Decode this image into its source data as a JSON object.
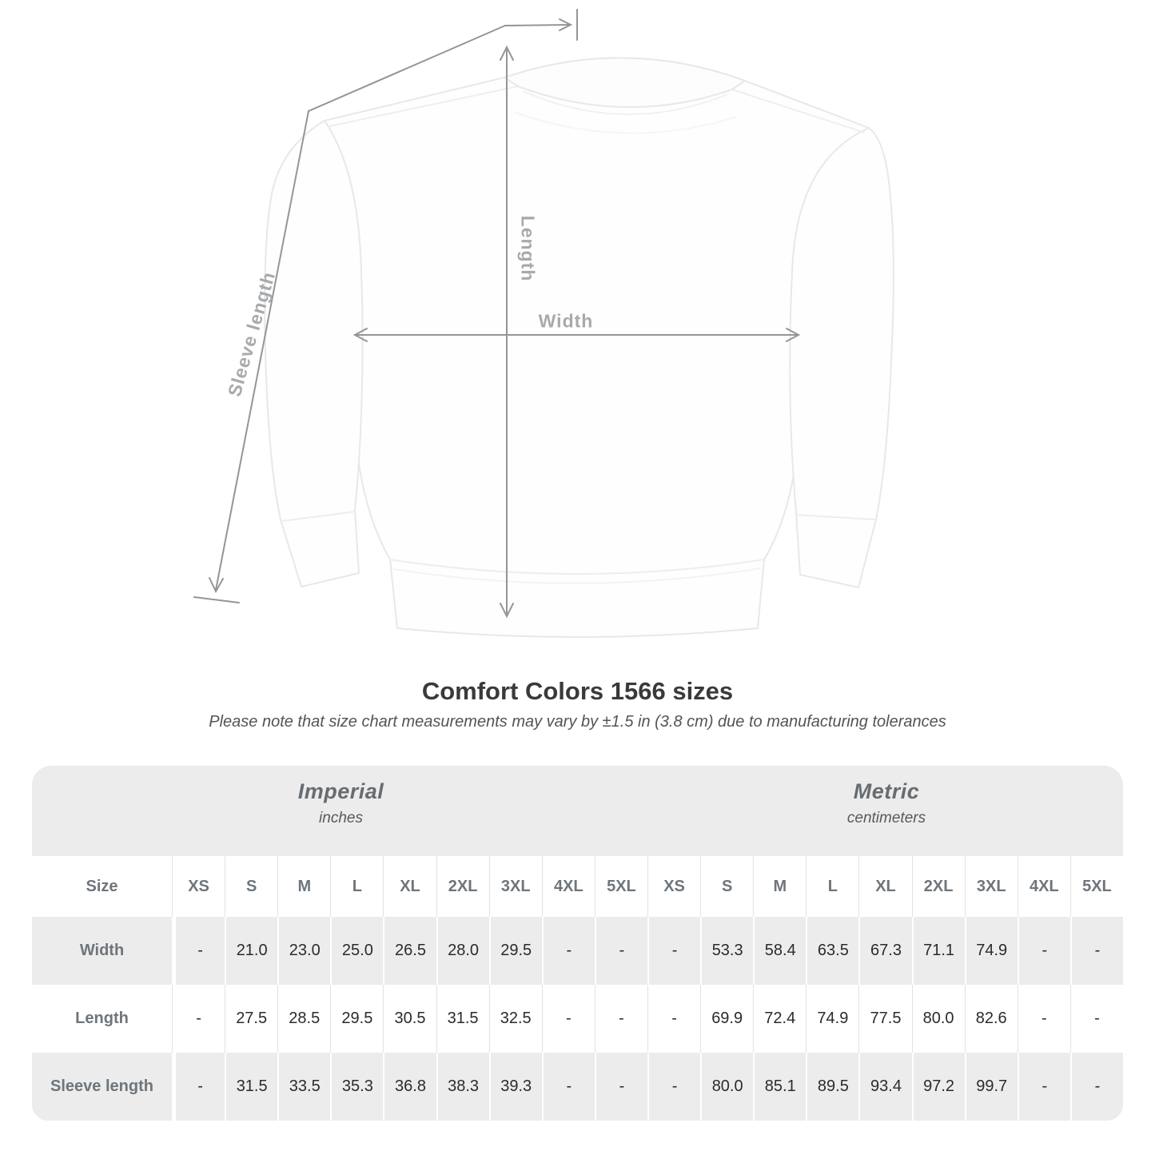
{
  "diagram": {
    "sleeve_length_label": "Sleeve length",
    "length_label": "Length",
    "width_label": "Width"
  },
  "title": "Comfort Colors 1566 sizes",
  "subtitle": "Please note that size chart measurements may vary by ±1.5 in (3.8 cm) due to manufacturing tolerances",
  "table": {
    "size_header": "Size",
    "unit_groups": [
      {
        "label": "Imperial",
        "unit": "inches"
      },
      {
        "label": "Metric",
        "unit": "centimeters"
      }
    ],
    "sizes": [
      "XS",
      "S",
      "M",
      "L",
      "XL",
      "2XL",
      "3XL",
      "4XL",
      "5XL"
    ],
    "rows": [
      {
        "label": "Width",
        "imperial": [
          "-",
          "21.0",
          "23.0",
          "25.0",
          "26.5",
          "28.0",
          "29.5",
          "-",
          "-"
        ],
        "metric": [
          "-",
          "53.3",
          "58.4",
          "63.5",
          "67.3",
          "71.1",
          "74.9",
          "-",
          "-"
        ]
      },
      {
        "label": "Length",
        "imperial": [
          "-",
          "27.5",
          "28.5",
          "29.5",
          "30.5",
          "31.5",
          "32.5",
          "-",
          "-"
        ],
        "metric": [
          "-",
          "69.9",
          "72.4",
          "74.9",
          "77.5",
          "80.0",
          "82.6",
          "-",
          "-"
        ]
      },
      {
        "label": "Sleeve length",
        "imperial": [
          "-",
          "31.5",
          "33.5",
          "35.3",
          "36.8",
          "38.3",
          "39.3",
          "-",
          "-"
        ],
        "metric": [
          "-",
          "80.0",
          "85.1",
          "89.5",
          "93.4",
          "97.2",
          "99.7",
          "-",
          "-"
        ]
      }
    ]
  },
  "chart_data": {
    "type": "table",
    "title": "Comfort Colors 1566 sizes",
    "note": "Measurements may vary by ±1.5 in (3.8 cm) due to manufacturing tolerances",
    "categories": [
      "XS",
      "S",
      "M",
      "L",
      "XL",
      "2XL",
      "3XL",
      "4XL",
      "5XL"
    ],
    "series": [
      {
        "name": "Width (inches)",
        "values": [
          null,
          21.0,
          23.0,
          25.0,
          26.5,
          28.0,
          29.5,
          null,
          null
        ]
      },
      {
        "name": "Length (inches)",
        "values": [
          null,
          27.5,
          28.5,
          29.5,
          30.5,
          31.5,
          32.5,
          null,
          null
        ]
      },
      {
        "name": "Sleeve length (inches)",
        "values": [
          null,
          31.5,
          33.5,
          35.3,
          36.8,
          38.3,
          39.3,
          null,
          null
        ]
      },
      {
        "name": "Width (cm)",
        "values": [
          null,
          53.3,
          58.4,
          63.5,
          67.3,
          71.1,
          74.9,
          null,
          null
        ]
      },
      {
        "name": "Length (cm)",
        "values": [
          null,
          69.9,
          72.4,
          74.9,
          77.5,
          80.0,
          82.6,
          null,
          null
        ]
      },
      {
        "name": "Sleeve length (cm)",
        "values": [
          null,
          80.0,
          85.1,
          89.5,
          93.4,
          97.2,
          99.7,
          null,
          null
        ]
      }
    ]
  },
  "colors": {
    "table_band": "#ececec",
    "row_stripe": "#ececec",
    "header_text": "#6e757b",
    "value_text": "#2b2b2b",
    "measure_line": "#959595",
    "measure_label": "#a7aaac",
    "garment_outline": "#e8e8e8"
  }
}
